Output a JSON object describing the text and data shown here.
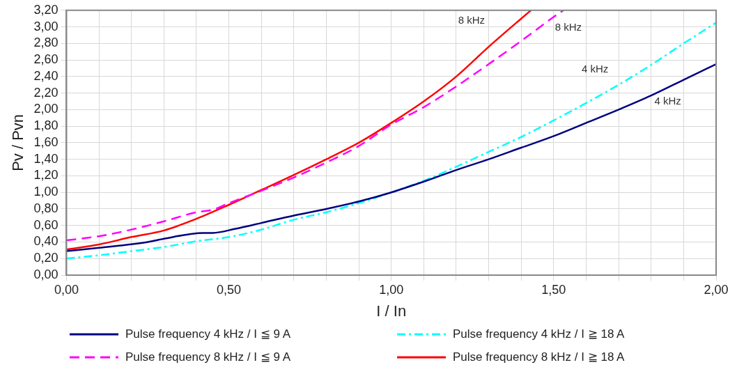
{
  "chart_data": {
    "type": "line",
    "xlabel": "I / In",
    "ylabel": "Pv / Pvn",
    "xlim": [
      0,
      2
    ],
    "xticks": [
      {
        "value": 0,
        "label": "0,00"
      },
      {
        "value": 0.1,
        "label": null
      },
      {
        "value": 0.2,
        "label": null
      },
      {
        "value": 0.3,
        "label": null
      },
      {
        "value": 0.4,
        "label": null
      },
      {
        "value": 0.5,
        "label": "0,50"
      },
      {
        "value": 0.6,
        "label": null
      },
      {
        "value": 0.7,
        "label": null
      },
      {
        "value": 0.8,
        "label": null
      },
      {
        "value": 0.9,
        "label": null
      },
      {
        "value": 1,
        "label": "1,00"
      },
      {
        "value": 1.1,
        "label": null
      },
      {
        "value": 1.2,
        "label": null
      },
      {
        "value": 1.3,
        "label": null
      },
      {
        "value": 1.4,
        "label": null
      },
      {
        "value": 1.5,
        "label": "1,50"
      },
      {
        "value": 1.6,
        "label": null
      },
      {
        "value": 1.7,
        "label": null
      },
      {
        "value": 1.8,
        "label": null
      },
      {
        "value": 1.9,
        "label": null
      },
      {
        "value": 2,
        "label": "2,00"
      }
    ],
    "ylim": [
      0,
      3.2
    ],
    "yticks": [
      {
        "value": 0,
        "label": "0,00"
      },
      {
        "value": 0.2,
        "label": "0,20"
      },
      {
        "value": 0.4,
        "label": "0,40"
      },
      {
        "value": 0.6,
        "label": "0,60"
      },
      {
        "value": 0.8,
        "label": "0,80"
      },
      {
        "value": 1,
        "label": "1,00"
      },
      {
        "value": 1.2,
        "label": "1,20"
      },
      {
        "value": 1.4,
        "label": "1,40"
      },
      {
        "value": 1.6,
        "label": "1,60"
      },
      {
        "value": 1.8,
        "label": "1,80"
      },
      {
        "value": 2,
        "label": "2,00"
      },
      {
        "value": 2.2,
        "label": "2,20"
      },
      {
        "value": 2.4,
        "label": "2,40"
      },
      {
        "value": 2.6,
        "label": "2,60"
      },
      {
        "value": 2.8,
        "label": "2,80"
      },
      {
        "value": 3,
        "label": "3,00"
      },
      {
        "value": 3.2,
        "label": "3,20"
      }
    ],
    "grid": true,
    "legend": "bottom",
    "marker": "none",
    "series": [
      {
        "name": "Pulse frequency 4 kHz / I ≦ 9 A",
        "color": "#000080",
        "line_style": "solid",
        "x": [
          0,
          0.1,
          0.25,
          0.3,
          0.42,
          0.45,
          0.52,
          0.6,
          0.7,
          0.8,
          0.9,
          1,
          1.1,
          1.2,
          1.3,
          1.4,
          1.5,
          1.6,
          1.7,
          1.8,
          1.9,
          2
        ],
        "values": [
          0.29,
          0.33,
          0.4,
          0.44,
          0.51,
          0.51,
          0.56,
          0.63,
          0.72,
          0.8,
          0.89,
          1,
          1.13,
          1.27,
          1.4,
          1.54,
          1.68,
          1.84,
          2,
          2.17,
          2.36,
          2.55
        ]
      },
      {
        "name": "Pulse frequency 8 kHz / I ≦ 9 A",
        "color": "#ff00ff",
        "line_style": "dashed",
        "x": [
          0,
          0.1,
          0.2,
          0.3,
          0.4,
          0.45,
          0.5,
          0.6,
          0.7,
          0.8,
          0.9,
          1,
          1.1,
          1.2,
          1.3,
          1.4,
          1.5,
          1.53
        ],
        "values": [
          0.42,
          0.47,
          0.55,
          0.65,
          0.76,
          0.79,
          0.87,
          1.02,
          1.18,
          1.36,
          1.56,
          1.82,
          2.03,
          2.28,
          2.55,
          2.83,
          3.12,
          3.2
        ]
      },
      {
        "name": "Pulse frequency 4 kHz / I ≧ 18 A",
        "color": "#00ffff",
        "line_style": "dashdot",
        "x": [
          0,
          0.1,
          0.2,
          0.3,
          0.4,
          0.5,
          0.6,
          0.7,
          0.8,
          0.9,
          1,
          1.1,
          1.2,
          1.3,
          1.4,
          1.5,
          1.6,
          1.7,
          1.8,
          1.9,
          2
        ],
        "values": [
          0.2,
          0.24,
          0.29,
          0.34,
          0.41,
          0.46,
          0.55,
          0.67,
          0.76,
          0.87,
          1,
          1.14,
          1.31,
          1.49,
          1.67,
          1.87,
          2.08,
          2.3,
          2.54,
          2.8,
          3.05
        ]
      },
      {
        "name": "Pulse frequency 8 kHz / I ≧ 18 A",
        "color": "#ff0000",
        "line_style": "solid",
        "x": [
          0,
          0.1,
          0.2,
          0.3,
          0.4,
          0.5,
          0.6,
          0.7,
          0.8,
          0.9,
          1,
          1.1,
          1.2,
          1.3,
          1.4,
          1.43
        ],
        "values": [
          0.31,
          0.37,
          0.46,
          0.54,
          0.68,
          0.85,
          1.03,
          1.21,
          1.4,
          1.6,
          1.84,
          2.1,
          2.4,
          2.76,
          3.1,
          3.2
        ]
      }
    ],
    "annotations": [
      "8 kHz",
      "8 kHz",
      "4 kHz",
      "4 kHz"
    ]
  }
}
